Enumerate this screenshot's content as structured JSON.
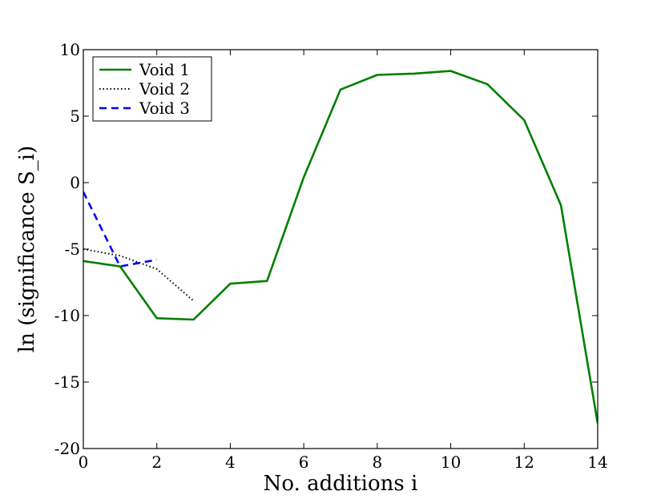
{
  "chart_data": {
    "type": "line",
    "title": "",
    "xlabel": "No. additions i",
    "ylabel": "ln (significance S_i)",
    "xlim": [
      0,
      14
    ],
    "ylim": [
      -20,
      10
    ],
    "grid": false,
    "legend_position": "top-left",
    "x_ticks": [
      0,
      2,
      4,
      6,
      8,
      10,
      12,
      14
    ],
    "y_ticks": [
      -20,
      -15,
      -10,
      -5,
      0,
      5,
      10
    ],
    "x_tick_labels": [
      "0",
      "2",
      "4",
      "6",
      "8",
      "10",
      "12",
      "14"
    ],
    "y_tick_labels": [
      "-20",
      "-15",
      "-10",
      "-5",
      "0",
      "5",
      "10"
    ],
    "series": [
      {
        "name": "Void 1",
        "color": "#007f00",
        "style": "solid",
        "x": [
          0,
          1,
          2,
          3,
          4,
          5,
          6,
          7,
          8,
          9,
          10,
          11,
          12,
          13,
          14
        ],
        "y": [
          -5.9,
          -6.3,
          -10.2,
          -10.3,
          -7.6,
          -7.4,
          0.4,
          7.0,
          8.1,
          8.2,
          8.4,
          7.4,
          4.7,
          -1.7,
          -18.1
        ]
      },
      {
        "name": "Void 2",
        "color": "#000000",
        "style": "dotted",
        "x": [
          0,
          1,
          2,
          3
        ],
        "y": [
          -5.0,
          -5.5,
          -6.5,
          -8.9
        ]
      },
      {
        "name": "Void 3",
        "color": "#0000ff",
        "style": "dashed",
        "x": [
          0,
          1,
          2
        ],
        "y": [
          -0.7,
          -6.3,
          -5.8
        ]
      }
    ]
  }
}
